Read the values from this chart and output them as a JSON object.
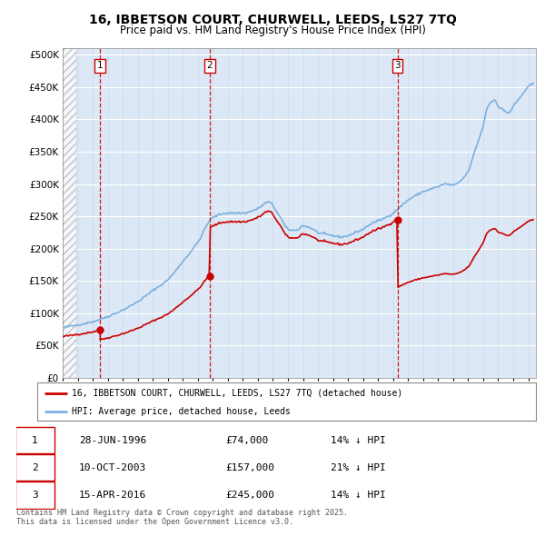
{
  "title": "16, IBBETSON COURT, CHURWELL, LEEDS, LS27 7TQ",
  "subtitle": "Price paid vs. HM Land Registry's House Price Index (HPI)",
  "ytick_values": [
    0,
    50000,
    100000,
    150000,
    200000,
    250000,
    300000,
    350000,
    400000,
    450000,
    500000
  ],
  "ylim": [
    0,
    510000
  ],
  "xlim_start": 1994.0,
  "xlim_end": 2025.5,
  "hpi_color": "#7ab0e0",
  "price_color": "#cc0000",
  "sale_dates": [
    1996.49,
    2003.78,
    2016.29
  ],
  "sale_labels": [
    "1",
    "2",
    "3"
  ],
  "sale_prices": [
    74000,
    157000,
    245000
  ],
  "sale_date_strs": [
    "28-JUN-1996",
    "10-OCT-2003",
    "15-APR-2016"
  ],
  "sale_price_strs": [
    "£74,000",
    "£157,000",
    "£245,000"
  ],
  "sale_hpi_strs": [
    "14% ↓ HPI",
    "21% ↓ HPI",
    "14% ↓ HPI"
  ],
  "legend_line1": "16, IBBETSON COURT, CHURWELL, LEEDS, LS27 7TQ (detached house)",
  "legend_line2": "HPI: Average price, detached house, Leeds",
  "footnote": "Contains HM Land Registry data © Crown copyright and database right 2025.\nThis data is licensed under the Open Government Licence v3.0.",
  "background_color": "#dce8f5",
  "hatch_end_year": 1994.9
}
